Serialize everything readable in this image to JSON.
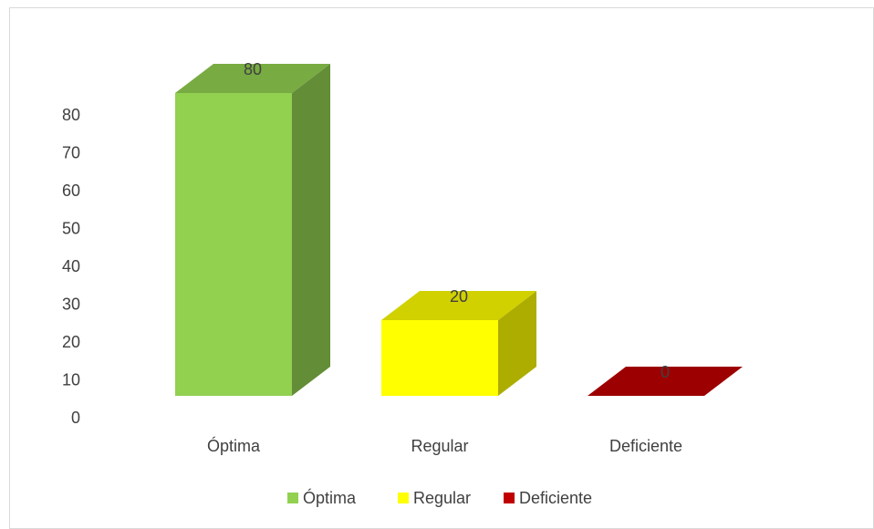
{
  "chart_data": {
    "type": "bar3d",
    "categories": [
      "Óptima",
      "Regular",
      "Deficiente"
    ],
    "values": [
      80,
      20,
      0
    ],
    "colors": [
      "#92d050",
      "#ffff00",
      "#c00000"
    ],
    "ylim": [
      0,
      80
    ],
    "yticks": [
      0,
      10,
      20,
      30,
      40,
      50,
      60,
      70,
      80
    ],
    "legend": "bottom"
  }
}
